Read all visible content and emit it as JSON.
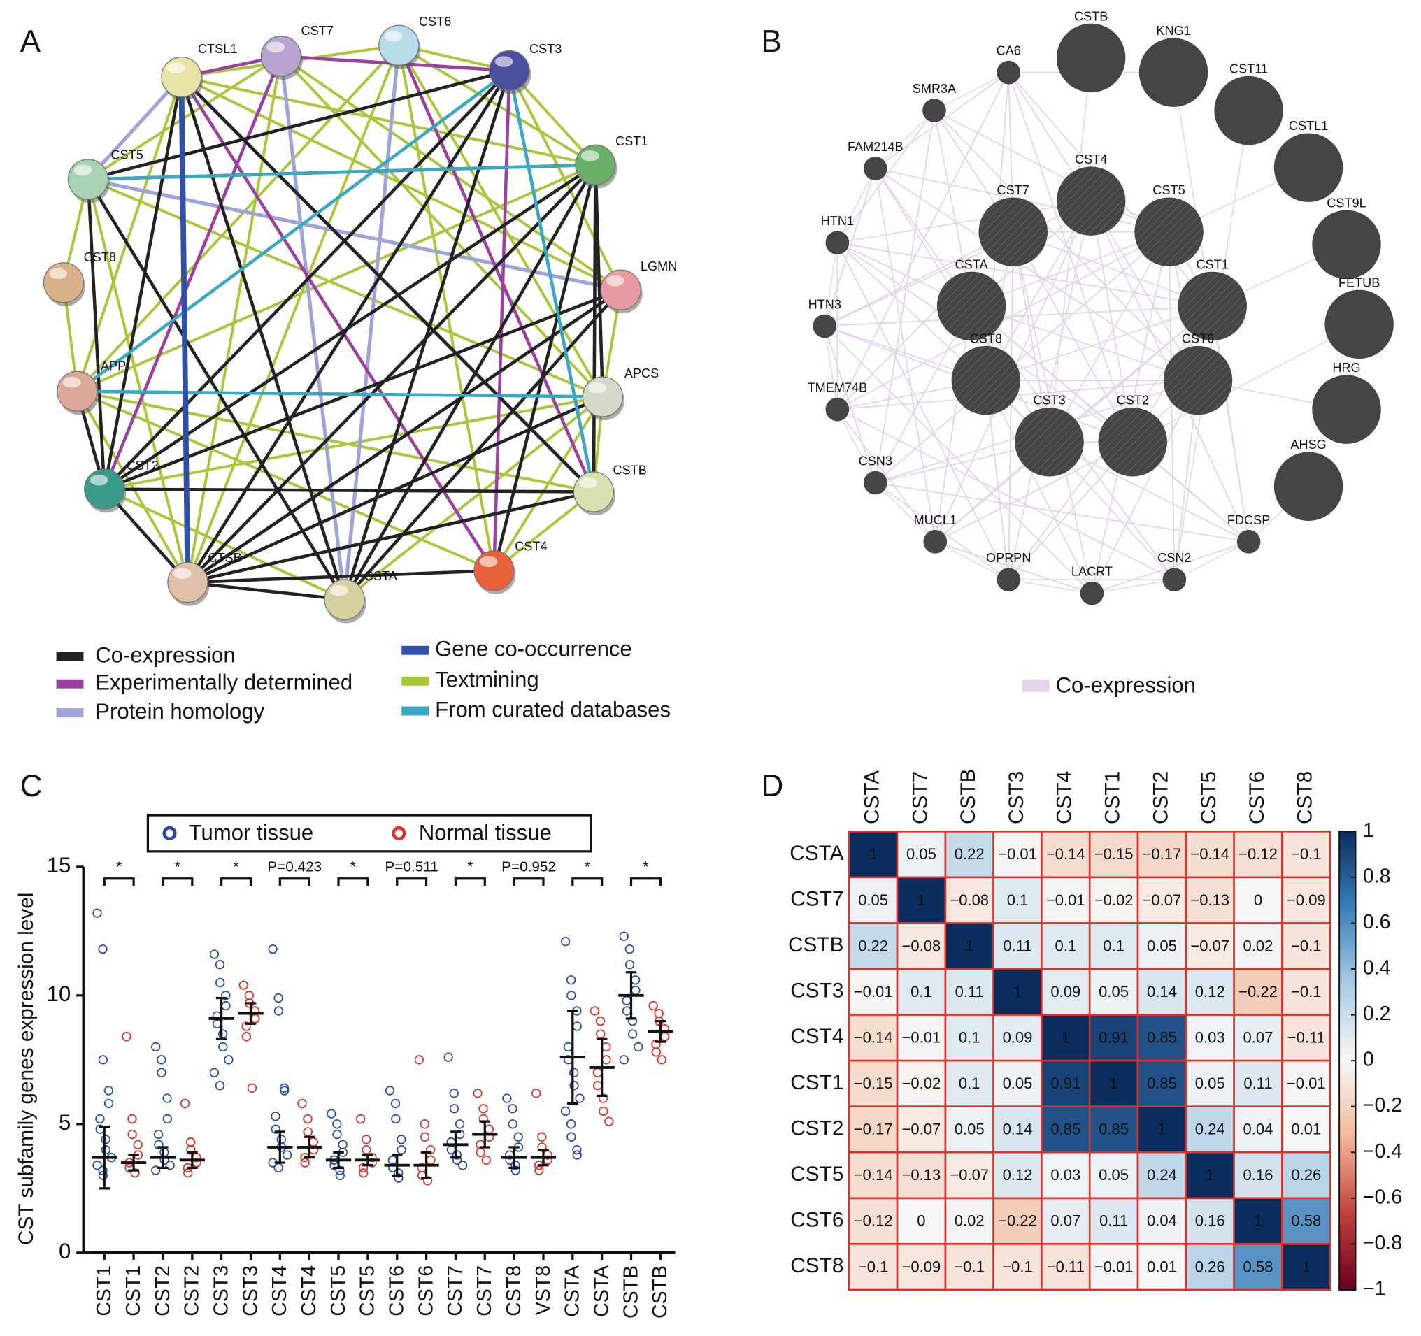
{
  "chart_data": [
    {
      "type": "network",
      "panel_label": "A",
      "nodes": [
        "CTSL1",
        "CST7",
        "CST6",
        "CST3",
        "CST5",
        "CST1",
        "CST8",
        "LGMN",
        "APP",
        "APCS",
        "CST2",
        "CSTB",
        "CTSB",
        "CSTA",
        "CST4"
      ],
      "legend": [
        {
          "name": "Co-expression",
          "color": "#222222"
        },
        {
          "name": "Experimentally determined",
          "color": "#9b3fa0"
        },
        {
          "name": "Protein homology",
          "color": "#9ea3d8"
        },
        {
          "name": "Gene co-occurrence",
          "color": "#2f4fa8"
        },
        {
          "name": "Textmining",
          "color": "#a8c83a"
        },
        {
          "name": "From curated databases",
          "color": "#38a8c6"
        }
      ]
    },
    {
      "type": "network",
      "panel_label": "B",
      "nodes": [
        "CA6",
        "SMR3A",
        "FAM214B",
        "HTN1",
        "HTN3",
        "TMEM74B",
        "CSN3",
        "MUCL1",
        "OPRPN",
        "LACRT",
        "CSN2",
        "FDCSP",
        "CSTB",
        "KNG1",
        "CST11",
        "CSTL1",
        "CST9L",
        "FETUB",
        "HRG",
        "AHSG",
        "CST4",
        "CST7",
        "CST5",
        "CSTA",
        "CST1",
        "CST8",
        "CST6",
        "CST3",
        "CST2"
      ],
      "legend": [
        {
          "name": "Co-expression",
          "color": "#e4d4ea"
        }
      ]
    },
    {
      "type": "dot",
      "panel_label": "C",
      "ylabel": "CST subfamily genes expression level",
      "categories": [
        "CST1",
        "CST1",
        "CST2",
        "CST2",
        "CST3",
        "CST3",
        "CST4",
        "CST4",
        "CST5",
        "CST5",
        "CST6",
        "CST6",
        "CST7",
        "CST7",
        "CST8",
        "VST8",
        "CSTA",
        "CSTA",
        "CSTB",
        "CSTB"
      ],
      "series": [
        {
          "name": "Tumor tissue",
          "color": "#2a4aa6",
          "values": [
            3.7,
            null,
            3.7,
            null,
            9.1,
            null,
            4.1,
            null,
            3.6,
            null,
            3.4,
            null,
            4.2,
            null,
            3.7,
            null,
            7.6,
            null,
            10.0,
            null
          ],
          "errors": [
            1.2,
            null,
            0.4,
            null,
            0.8,
            null,
            0.6,
            null,
            0.3,
            null,
            0.4,
            null,
            0.5,
            null,
            0.4,
            null,
            1.8,
            null,
            0.9,
            null
          ],
          "points": [
            [
              13.2,
              11.8,
              7.5,
              6.3,
              5.8,
              5.2,
              4.8,
              4.4,
              4.0,
              3.7,
              3.4,
              3.2,
              3.0
            ],
            null,
            [
              8.0,
              7.5,
              7.0,
              6.0,
              5.2,
              4.6,
              4.2,
              3.9,
              3.6,
              3.4,
              3.2
            ],
            null,
            [
              11.6,
              11.2,
              10.5,
              10.0,
              9.6,
              9.2,
              8.9,
              8.5,
              8.0,
              7.5,
              7.0,
              6.5
            ],
            null,
            [
              11.8,
              9.9,
              9.4,
              6.4,
              6.3,
              5.3,
              4.8,
              4.4,
              4.1,
              3.8,
              3.5,
              3.3
            ],
            null,
            [
              5.4,
              5.0,
              4.6,
              4.2,
              3.9,
              3.6,
              3.4,
              3.2,
              3.0
            ],
            null,
            [
              6.3,
              5.8,
              5.2,
              4.4,
              4.0,
              3.6,
              3.3,
              3.1,
              2.9
            ],
            null,
            [
              7.6,
              6.2,
              5.6,
              5.0,
              4.6,
              4.3,
              4.0,
              3.8,
              3.6,
              3.4
            ],
            null,
            [
              6.0,
              5.6,
              5.0,
              4.5,
              4.1,
              3.8,
              3.6,
              3.4,
              3.2
            ],
            null,
            [
              12.1,
              10.6,
              10.0,
              9.4,
              8.8,
              8.0,
              7.5,
              7.0,
              6.5,
              6.0,
              5.5,
              5.0,
              4.5,
              4.0,
              3.8
            ],
            null,
            [
              12.3,
              11.8,
              11.2,
              10.6,
              10.2,
              9.8,
              9.4,
              9.0,
              8.5,
              8.0,
              7.5
            ],
            null
          ]
        },
        {
          "name": "Normal tissue",
          "color": "#e0302a",
          "values": [
            null,
            3.5,
            null,
            3.6,
            null,
            9.3,
            null,
            4.1,
            null,
            3.6,
            null,
            3.4,
            null,
            4.6,
            null,
            3.7,
            null,
            7.2,
            null,
            8.6
          ],
          "errors": [
            null,
            0.3,
            null,
            0.3,
            null,
            0.4,
            null,
            0.4,
            null,
            0.2,
            null,
            0.5,
            null,
            0.5,
            null,
            0.3,
            null,
            1.1,
            null,
            0.4
          ],
          "points": [
            null,
            [
              8.4,
              5.2,
              4.6,
              4.2,
              3.8,
              3.5,
              3.3,
              3.1
            ],
            null,
            [
              5.8,
              4.3,
              4.0,
              3.7,
              3.5,
              3.3,
              3.1
            ],
            null,
            [
              10.4,
              10.0,
              9.7,
              9.4,
              9.1,
              8.8,
              8.4,
              6.4
            ],
            null,
            [
              5.8,
              5.2,
              4.7,
              4.3,
              4.0,
              3.7,
              3.5
            ],
            null,
            [
              5.2,
              4.4,
              4.0,
              3.7,
              3.5,
              3.3,
              3.1
            ],
            null,
            [
              7.5,
              5.0,
              4.5,
              4.0,
              3.6,
              3.3,
              3.0,
              2.8
            ],
            null,
            [
              6.2,
              5.6,
              5.2,
              4.8,
              4.5,
              4.2,
              3.9,
              3.6
            ],
            null,
            [
              6.2,
              4.5,
              4.1,
              3.8,
              3.6,
              3.4,
              3.2
            ],
            null,
            [
              9.4,
              9.0,
              8.5,
              8.0,
              7.5,
              7.0,
              6.5,
              6.0,
              5.5,
              5.1
            ],
            null,
            [
              9.6,
              9.3,
              9.0,
              8.7,
              8.4,
              8.1,
              7.8,
              7.5
            ]
          ]
        }
      ],
      "annotations": [
        "*",
        "*",
        "*",
        "P=0.423",
        "*",
        "P=0.511",
        "*",
        "P=0.952",
        "*",
        "*"
      ],
      "ylim": [
        0,
        15
      ],
      "yticks": [
        0,
        5,
        10,
        15
      ]
    },
    {
      "type": "heatmap",
      "panel_label": "D",
      "rows": [
        "CSTA",
        "CST7",
        "CSTB",
        "CST3",
        "CST4",
        "CST1",
        "CST2",
        "CST5",
        "CST6",
        "CST8"
      ],
      "columns": [
        "CSTA",
        "CST7",
        "CSTB",
        "CST3",
        "CST4",
        "CST1",
        "CST2",
        "CST5",
        "CST6",
        "CST8"
      ],
      "values": [
        [
          1,
          0.05,
          0.22,
          -0.01,
          -0.14,
          -0.15,
          -0.17,
          -0.14,
          -0.12,
          -0.1
        ],
        [
          0.05,
          1,
          -0.08,
          0.1,
          -0.01,
          -0.02,
          -0.07,
          -0.13,
          0,
          -0.09
        ],
        [
          0.22,
          -0.08,
          1,
          0.11,
          0.1,
          0.1,
          0.05,
          -0.07,
          0.02,
          -0.1
        ],
        [
          -0.01,
          0.1,
          0.11,
          1,
          0.09,
          0.05,
          0.14,
          0.12,
          -0.22,
          -0.1
        ],
        [
          -0.14,
          -0.01,
          0.1,
          0.09,
          1,
          0.91,
          0.85,
          0.03,
          0.07,
          -0.11
        ],
        [
          -0.15,
          -0.02,
          0.1,
          0.05,
          0.91,
          1,
          0.85,
          0.05,
          0.11,
          -0.01
        ],
        [
          -0.17,
          -0.07,
          0.05,
          0.14,
          0.85,
          0.85,
          1,
          0.24,
          0.04,
          0.01
        ],
        [
          -0.14,
          -0.13,
          -0.07,
          0.12,
          0.03,
          0.05,
          0.24,
          1,
          0.16,
          0.26
        ],
        [
          -0.12,
          0,
          0.02,
          -0.22,
          0.07,
          0.11,
          0.04,
          0.16,
          1,
          0.58
        ],
        [
          -0.1,
          -0.09,
          -0.1,
          -0.1,
          -0.11,
          -0.01,
          0.01,
          0.26,
          0.58,
          1
        ]
      ],
      "value_labels": [
        [
          "1",
          "0.05",
          "0.22",
          "−0.01",
          "−0.14",
          "−0.15",
          "−0.17",
          "−0.14",
          "−0.12",
          "−0.1"
        ],
        [
          "0.05",
          "1",
          "−0.08",
          "0.1",
          "−0.01",
          "−0.02",
          "−0.07",
          "−0.13",
          "0",
          "−0.09"
        ],
        [
          "0.22",
          "−0.08",
          "1",
          "0.11",
          "0.1",
          "0.1",
          "0.05",
          "−0.07",
          "0.02",
          "−0.1"
        ],
        [
          "−0.01",
          "0.1",
          "0.11",
          "1",
          "0.09",
          "0.05",
          "0.14",
          "0.12",
          "−0.22",
          "−0.1"
        ],
        [
          "−0.14",
          "−0.01",
          "0.1",
          "0.09",
          "1",
          "0.91",
          "0.85",
          "0.03",
          "0.07",
          "−0.11"
        ],
        [
          "−0.15",
          "−0.02",
          "0.1",
          "0.05",
          "0.91",
          "1",
          "0.85",
          "0.05",
          "0.11",
          "−0.01"
        ],
        [
          "−0.17",
          "−0.07",
          "0.05",
          "0.14",
          "0.85",
          "0.85",
          "1",
          "0.24",
          "0.04",
          "0.01"
        ],
        [
          "−0.14",
          "−0.13",
          "−0.07",
          "0.12",
          "0.03",
          "0.05",
          "0.24",
          "1",
          "0.16",
          "0.26"
        ],
        [
          "−0.12",
          "0",
          "0.02",
          "−0.22",
          "0.07",
          "0.11",
          "0.04",
          "0.16",
          "1",
          "0.58"
        ],
        [
          "−0.1",
          "−0.09",
          "−0.1",
          "−0.1",
          "−0.11",
          "−0.01",
          "0.01",
          "0.26",
          "0.58",
          "1"
        ]
      ],
      "zlim": [
        -1,
        1
      ],
      "zticks": [
        1,
        0.8,
        0.6,
        0.4,
        0.2,
        0,
        {
          "value": -0.2,
          "label": "−0.2"
        },
        {
          "value": -0.4,
          "label": "−0.4"
        },
        {
          "value": -0.6,
          "label": "−0.6"
        },
        {
          "value": -0.8,
          "label": "−0.8"
        },
        {
          "value": -1,
          "label": "−1"
        }
      ],
      "colors": [
        "#67001f",
        "#c1403d",
        "#f3b89a",
        "#f7f7f7",
        "#a9cce3",
        "#3b7fb9",
        "#0a2d5e"
      ]
    }
  ]
}
